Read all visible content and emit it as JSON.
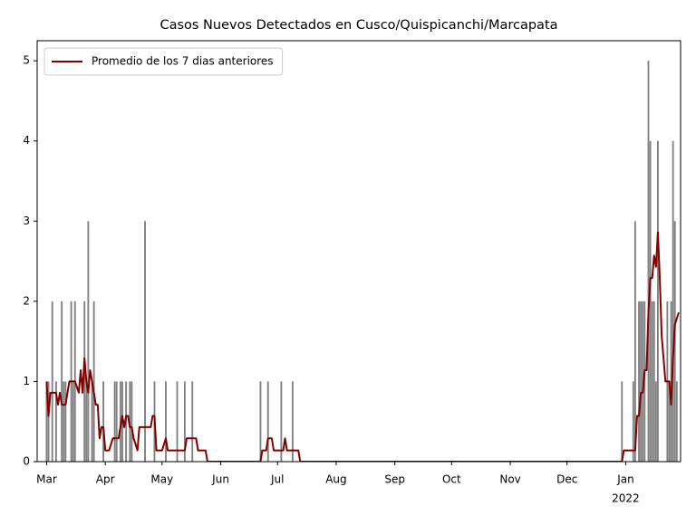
{
  "chart_data": {
    "type": "combo",
    "title": "Casos Nuevos Detectados en Cusco/Quispicanchi/Marcapata",
    "xlim": [
      -5,
      335
    ],
    "xticks": [
      {
        "value": 0,
        "label": "Mar"
      },
      {
        "value": 31,
        "label": "Apr"
      },
      {
        "value": 61,
        "label": "May"
      },
      {
        "value": 92,
        "label": "Jun"
      },
      {
        "value": 122,
        "label": "Jul"
      },
      {
        "value": 153,
        "label": "Aug"
      },
      {
        "value": 184,
        "label": "Sep"
      },
      {
        "value": 214,
        "label": "Oct"
      },
      {
        "value": 245,
        "label": "Nov"
      },
      {
        "value": 275,
        "label": "Dec"
      },
      {
        "value": 306,
        "label": "Jan"
      }
    ],
    "x_sublabel": "2022",
    "ylim": [
      0,
      5.25
    ],
    "yticks": [
      0,
      1,
      2,
      3,
      4,
      5
    ],
    "legend": "upper left",
    "series": [
      {
        "type": "bar",
        "color": "#808080",
        "x": [
          0,
          1,
          3,
          5,
          8,
          9,
          10,
          13,
          14,
          15,
          20,
          21,
          22,
          24,
          25,
          30,
          36,
          37,
          39,
          40,
          42,
          44,
          45,
          52,
          57,
          63,
          69,
          73,
          77,
          113,
          117,
          124,
          130,
          304,
          310,
          311,
          313,
          314,
          315,
          316,
          318,
          319,
          320,
          321,
          322,
          323,
          328,
          329,
          330,
          331,
          332,
          333
        ],
        "values": [
          1,
          1,
          2,
          1,
          2,
          1,
          1,
          2,
          1,
          2,
          2,
          1,
          3,
          1,
          2,
          1,
          1,
          1,
          1,
          1,
          1,
          1,
          1,
          3,
          1,
          1,
          1,
          1,
          1,
          1,
          1,
          1,
          1,
          1,
          1,
          3,
          2,
          2,
          2,
          2,
          5,
          4,
          2,
          2,
          1,
          4,
          2,
          1,
          2,
          4,
          3,
          1
        ]
      },
      {
        "type": "line",
        "name": "Promedio de los 7 dias anteriores",
        "color": "#800000",
        "x": [
          0,
          1,
          2,
          5,
          6,
          7,
          8,
          10,
          12,
          15,
          17,
          18,
          19,
          20,
          21,
          22,
          23,
          24,
          26,
          27,
          28,
          29,
          30,
          31,
          33,
          35,
          38,
          40,
          41,
          42,
          43,
          44,
          45,
          46,
          48,
          49,
          52,
          55,
          56,
          57,
          58,
          61,
          63,
          64,
          68,
          70,
          73,
          74,
          79,
          80,
          84,
          85,
          113,
          114,
          116,
          117,
          119,
          120,
          125,
          126,
          127,
          133,
          134,
          304,
          305,
          311,
          312,
          313,
          314,
          315,
          316,
          317,
          318,
          319,
          320,
          321,
          322,
          323,
          324,
          325,
          327,
          329,
          330,
          331,
          332,
          334
        ],
        "values": [
          1.0,
          0.57,
          0.86,
          0.86,
          0.71,
          0.86,
          0.71,
          0.71,
          1.0,
          1.0,
          0.86,
          1.14,
          0.86,
          1.29,
          1.0,
          0.86,
          1.14,
          1.0,
          0.71,
          0.71,
          0.29,
          0.43,
          0.43,
          0.14,
          0.14,
          0.29,
          0.29,
          0.57,
          0.43,
          0.57,
          0.57,
          0.43,
          0.43,
          0.29,
          0.14,
          0.43,
          0.43,
          0.43,
          0.57,
          0.57,
          0.14,
          0.14,
          0.29,
          0.14,
          0.14,
          0.14,
          0.14,
          0.29,
          0.29,
          0.14,
          0.14,
          0,
          0,
          0.14,
          0.14,
          0.29,
          0.29,
          0.14,
          0.14,
          0.29,
          0.14,
          0.14,
          0,
          0,
          0.14,
          0.14,
          0.57,
          0.57,
          0.86,
          0.86,
          1.14,
          1.14,
          1.86,
          2.29,
          2.29,
          2.57,
          2.43,
          2.86,
          2.29,
          1.57,
          1.0,
          1.0,
          0.71,
          1.29,
          1.71,
          1.86
        ]
      }
    ]
  }
}
